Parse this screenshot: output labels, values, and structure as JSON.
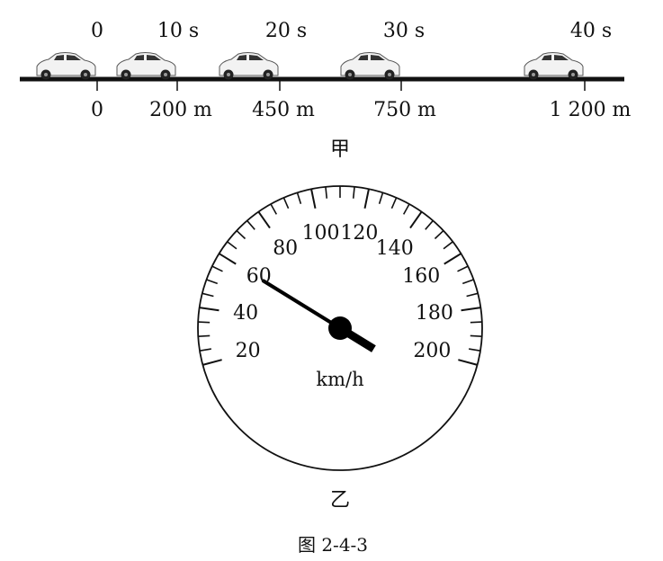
{
  "part_a": {
    "caption": "甲",
    "times": [
      "0",
      "10 s",
      "20 s",
      "30 s",
      "40 s"
    ],
    "distances": [
      "0",
      "200 m",
      "450 m",
      "750 m",
      "1 200 m"
    ]
  },
  "part_b": {
    "caption": "乙",
    "unit": "km/h",
    "scale_labels": [
      "20",
      "40",
      "60",
      "80",
      "100",
      "120",
      "140",
      "160",
      "180",
      "200"
    ],
    "needle_value": 60
  },
  "figure_caption": "图 2-4-3"
}
